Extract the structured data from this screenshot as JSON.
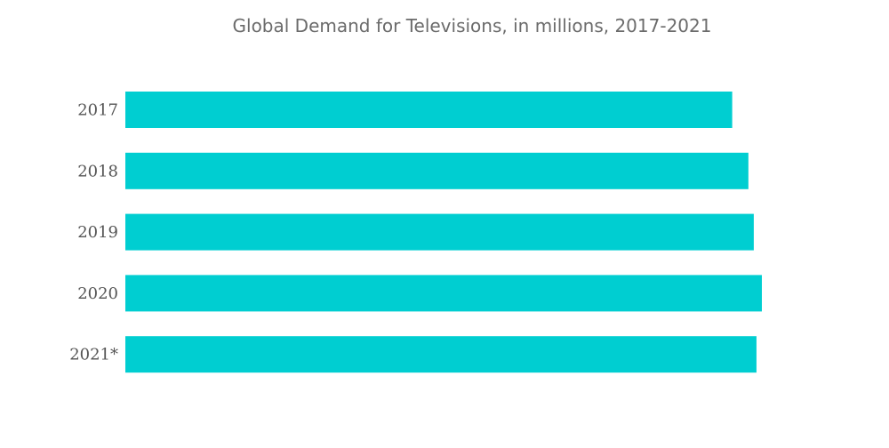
{
  "chart_data": {
    "type": "bar",
    "orientation": "horizontal",
    "title": "Global Demand for Televisions, in millions, 2017-2021",
    "categories": [
      "2017",
      "2018",
      "2019",
      "2020",
      "2021*"
    ],
    "values": [
      225,
      231,
      233,
      236,
      234
    ],
    "xlabel": "",
    "ylabel": "",
    "xlim": [
      0,
      236
    ],
    "grid": false,
    "legend": "none",
    "bar_color": "#00ced1"
  }
}
